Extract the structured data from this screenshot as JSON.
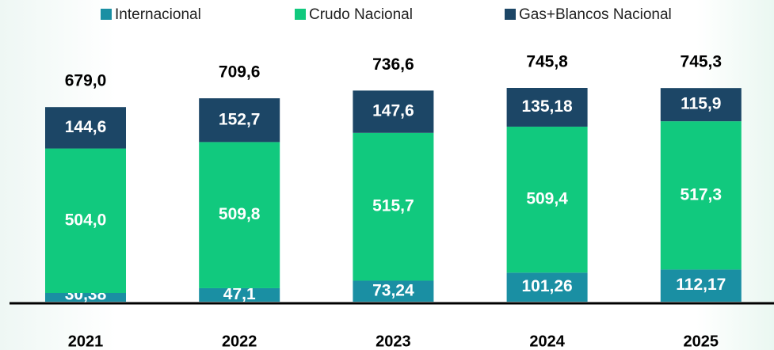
{
  "chart_data": {
    "type": "stacked-bar",
    "categories": [
      "2021",
      "2022",
      "2023",
      "2024",
      "2025"
    ],
    "series": [
      {
        "name": "Internacional",
        "color": "#1a8fa3",
        "values": [
          30.38,
          47.1,
          73.24,
          101.26,
          112.17
        ],
        "value_labels": [
          "30,38",
          "47,1",
          "73,24",
          "101,26",
          "112,17"
        ]
      },
      {
        "name": "Crudo Nacional",
        "color": "#11c97e",
        "values": [
          504.0,
          509.8,
          515.7,
          509.4,
          517.3
        ],
        "value_labels": [
          "504,0",
          "509,8",
          "515,7",
          "509,4",
          "517,3"
        ]
      },
      {
        "name": "Gas+Blancos Nacional",
        "color": "#1c4666",
        "values": [
          144.6,
          152.7,
          147.6,
          135.18,
          115.9
        ],
        "value_labels": [
          "144,6",
          "152,7",
          "147,6",
          "135,18",
          "115,9"
        ]
      }
    ],
    "totals": [
      679.0,
      709.6,
      736.6,
      745.8,
      745.3
    ],
    "total_labels": [
      "679,0",
      "709,6",
      "736,6",
      "745,8",
      "745,3"
    ]
  }
}
